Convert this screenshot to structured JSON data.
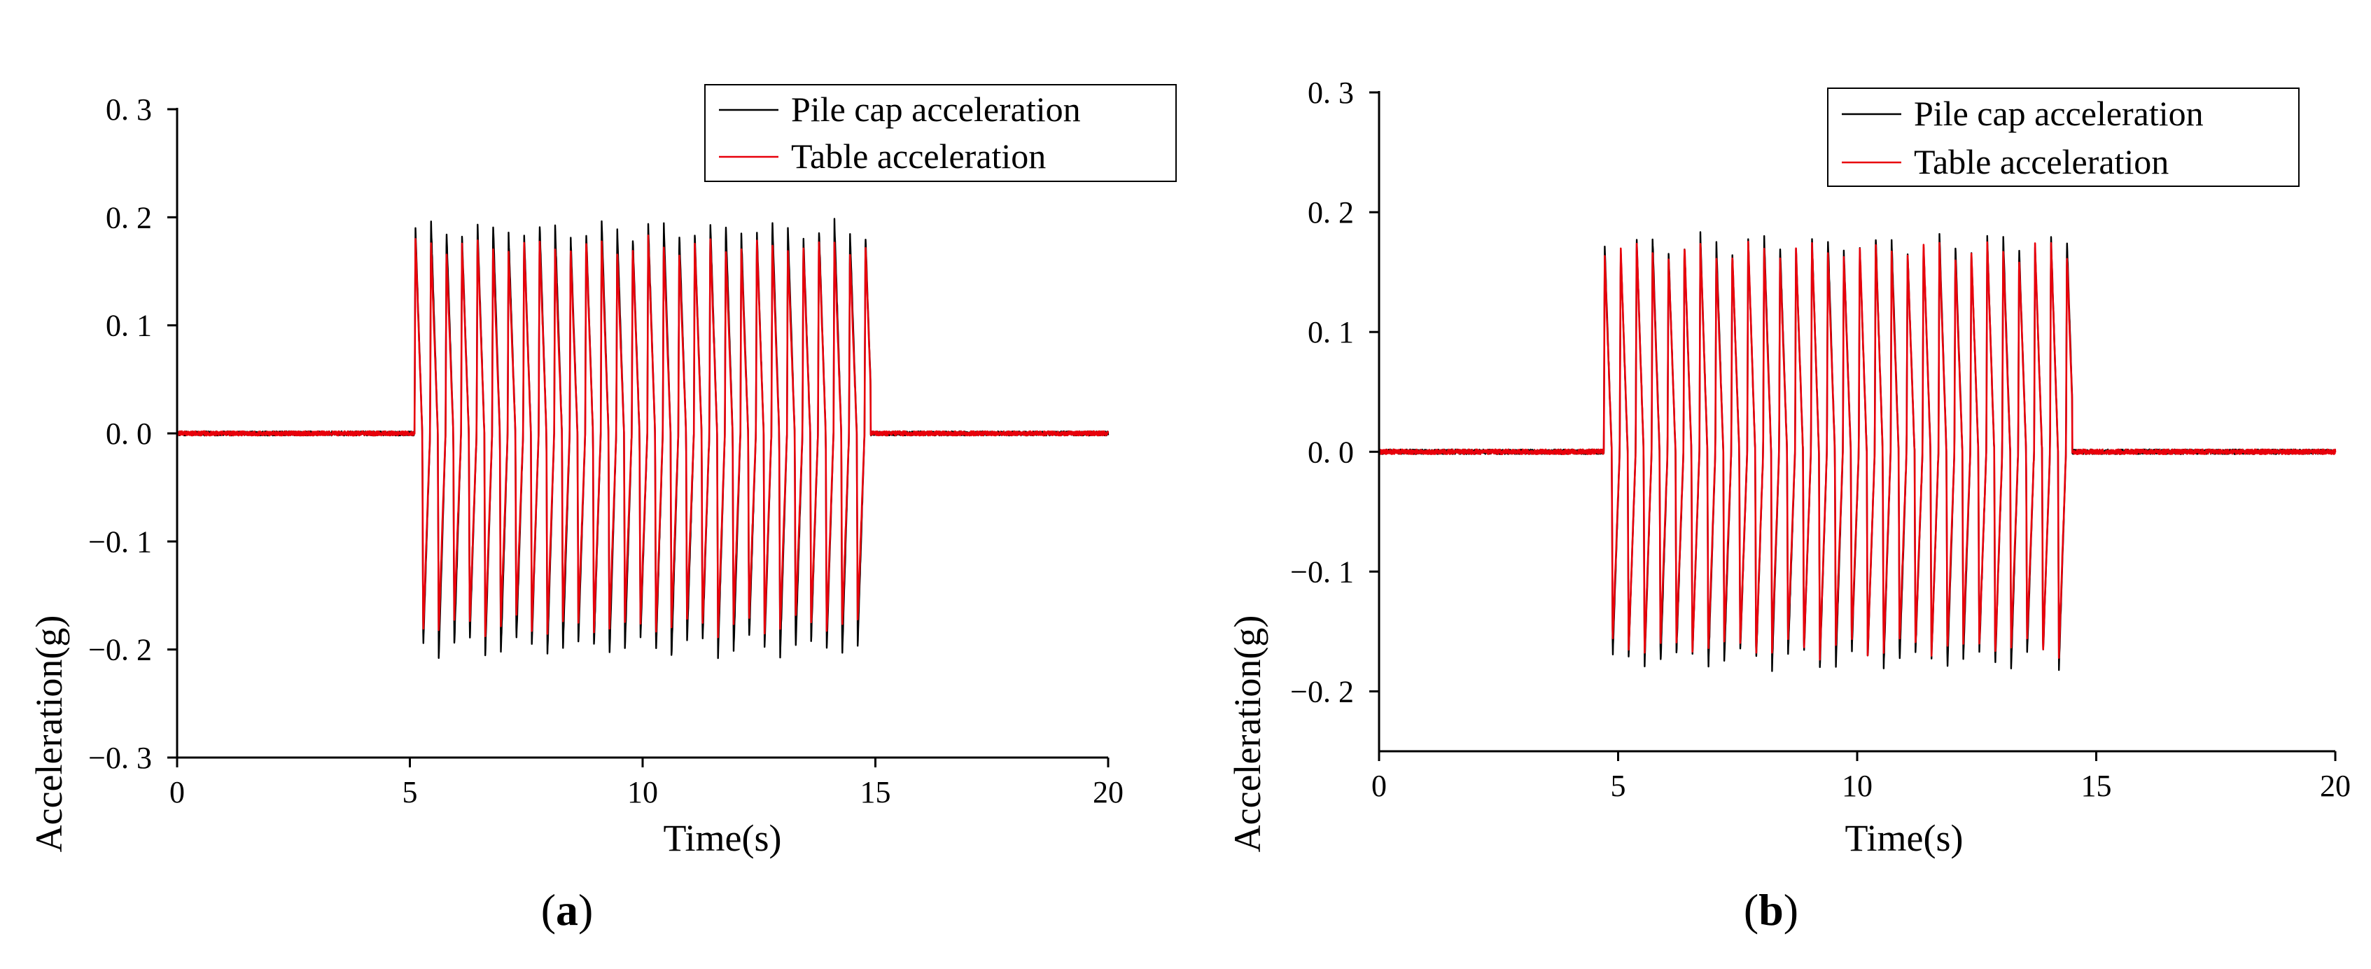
{
  "figure": {
    "panels": [
      {
        "label_open": "(",
        "label_letter": "a",
        "label_close": ")"
      },
      {
        "label_open": "(",
        "label_letter": "b",
        "label_close": ")"
      }
    ]
  },
  "chart_data": [
    {
      "type": "line",
      "panel": "a",
      "title": "",
      "xlabel": "Time(s)",
      "ylabel": "Acceleration(g)",
      "xlim": [
        0,
        20
      ],
      "ylim": [
        -0.3,
        0.3
      ],
      "xticks": [
        0,
        5,
        10,
        15,
        20
      ],
      "xtick_labels": [
        "0",
        "5",
        "10",
        "15",
        "20"
      ],
      "yticks": [
        -0.3,
        -0.2,
        -0.1,
        0.0,
        0.1,
        0.2,
        0.3
      ],
      "ytick_labels": [
        "−0. 3",
        "−0. 2",
        "−0. 1",
        "0. 0",
        "0. 1",
        "0. 2",
        "0. 3"
      ],
      "grid": false,
      "legend_position": "top-right",
      "series": [
        {
          "name": "Pile cap acceleration",
          "color": "#000000",
          "start_s": 5.1,
          "end_s": 14.9,
          "freq_hz": 3.0,
          "amp_pos": 0.19,
          "amp_neg": -0.2,
          "peak_max": 0.21,
          "peak_min": -0.215,
          "noise": 0.002
        },
        {
          "name": "Table acceleration",
          "color": "#e8000b",
          "start_s": 5.1,
          "end_s": 14.9,
          "freq_hz": 3.0,
          "amp_pos": 0.175,
          "amp_neg": -0.18,
          "peak_max": 0.18,
          "peak_min": -0.18,
          "noise": 0.002
        }
      ]
    },
    {
      "type": "line",
      "panel": "b",
      "title": "",
      "xlabel": "Time(s)",
      "ylabel": "Acceleration(g)",
      "xlim": [
        0,
        20
      ],
      "ylim": [
        -0.25,
        0.3
      ],
      "xticks": [
        0,
        5,
        10,
        15,
        20
      ],
      "xtick_labels": [
        "0",
        "5",
        "10",
        "15",
        "20"
      ],
      "yticks": [
        -0.2,
        -0.1,
        0.0,
        0.1,
        0.2,
        0.3
      ],
      "ytick_labels": [
        "−0. 2",
        "−0. 1",
        "0. 0",
        "0. 1",
        "0. 2",
        "0. 3"
      ],
      "grid": false,
      "legend_position": "top-right",
      "series": [
        {
          "name": "Pile cap acceleration",
          "color": "#000000",
          "start_s": 4.7,
          "end_s": 14.5,
          "freq_hz": 3.0,
          "amp_pos": 0.175,
          "amp_neg": -0.175,
          "peak_max": 0.185,
          "peak_min": -0.19,
          "noise": 0.002
        },
        {
          "name": "Table acceleration",
          "color": "#e8000b",
          "start_s": 4.7,
          "end_s": 14.5,
          "freq_hz": 3.0,
          "amp_pos": 0.17,
          "amp_neg": -0.165,
          "peak_max": 0.175,
          "peak_min": -0.17,
          "noise": 0.002
        }
      ]
    }
  ]
}
